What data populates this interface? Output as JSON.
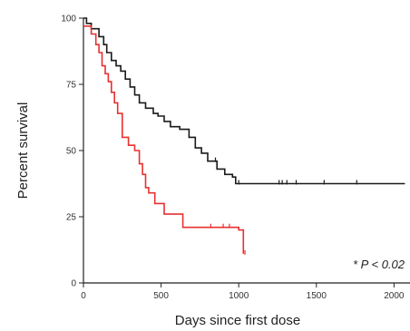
{
  "chart_data": {
    "type": "line",
    "subtype": "kaplan-meier-survival",
    "xlabel": "Days since first dose",
    "ylabel": "Percent survival",
    "xlim": [
      0,
      2100
    ],
    "ylim": [
      0,
      100
    ],
    "xticks": [
      0,
      500,
      1000,
      1500,
      2000
    ],
    "xtick_labels": [
      "0",
      "500",
      "1000",
      "1500",
      "2000"
    ],
    "yticks": [
      0,
      25,
      50,
      75,
      100
    ],
    "ytick_labels": [
      "0",
      "25",
      "50",
      "75",
      "100"
    ],
    "grid": false,
    "annotation": "* P < 0.02",
    "series": [
      {
        "color": "#1a1a1a",
        "x": [
          0,
          20,
          50,
          100,
          130,
          150,
          180,
          210,
          240,
          270,
          300,
          330,
          360,
          400,
          450,
          480,
          520,
          560,
          620,
          680,
          720,
          760,
          800,
          860,
          910,
          960,
          980,
          1400,
          2070
        ],
        "y": [
          100,
          98,
          96,
          93,
          90,
          87,
          84,
          82,
          80,
          77,
          74,
          71,
          68,
          66,
          64,
          63,
          61,
          59,
          58,
          55,
          51,
          49,
          46,
          43,
          41,
          40,
          37.5,
          37.5,
          37.5
        ],
        "censored_x": [
          850,
          1000,
          1260,
          1280,
          1310,
          1370,
          1550,
          1760
        ]
      },
      {
        "color": "#e83030",
        "x": [
          0,
          50,
          80,
          100,
          120,
          140,
          160,
          180,
          200,
          220,
          250,
          290,
          330,
          360,
          380,
          400,
          420,
          460,
          520,
          640,
          1000,
          1030
        ],
        "y": [
          97,
          94,
          90,
          87,
          82,
          79,
          76,
          72,
          68,
          64,
          55,
          52,
          50,
          45,
          41,
          36,
          34,
          30,
          26,
          21,
          20,
          11
        ],
        "censored_x": [
          820,
          900,
          940,
          1040
        ]
      }
    ]
  }
}
